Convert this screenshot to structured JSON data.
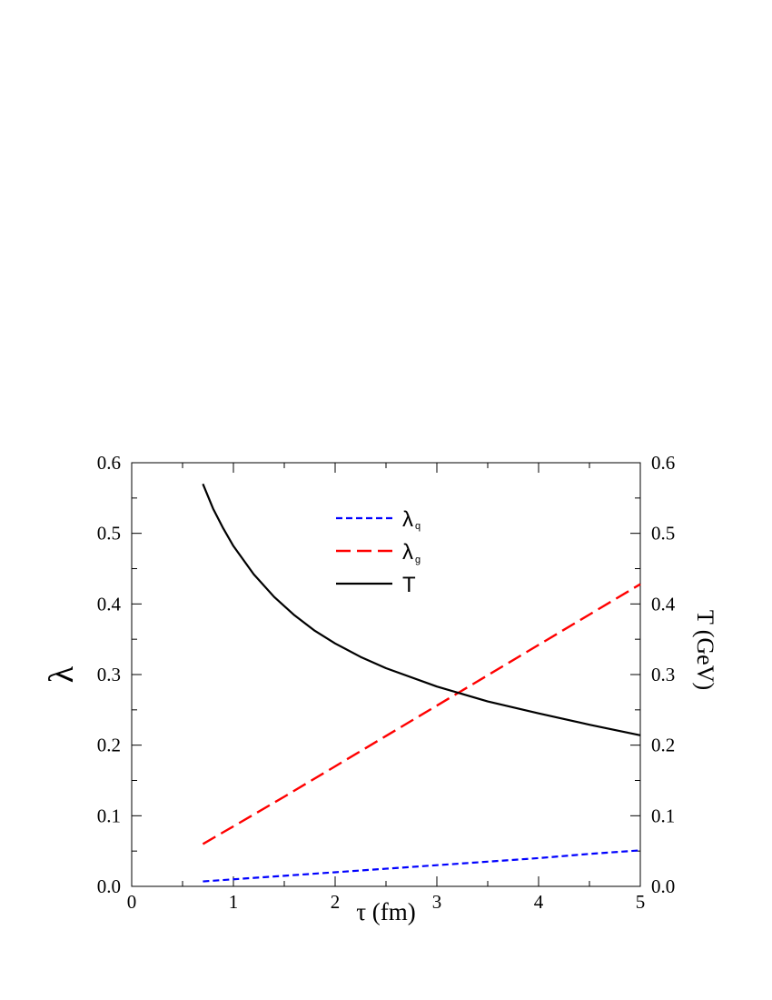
{
  "chart_data": {
    "type": "line",
    "xlabel": "τ (fm)",
    "ylabel_left": "λ",
    "ylabel_right": "T (GeV)",
    "xlim": [
      0,
      5
    ],
    "ylim_left": [
      0.0,
      0.6
    ],
    "ylim_right": [
      0.0,
      0.6
    ],
    "xticks": [
      "0",
      "1",
      "2",
      "3",
      "4",
      "5"
    ],
    "yticks_left": [
      "0.0",
      "0.1",
      "0.2",
      "0.3",
      "0.4",
      "0.5",
      "0.6"
    ],
    "yticks_right": [
      "0.0",
      "0.1",
      "0.2",
      "0.3",
      "0.4",
      "0.5",
      "0.6"
    ],
    "grid": false,
    "legend_position": "top-center",
    "series": [
      {
        "name": "λ",
        "subscript": "q",
        "style": "short-dash",
        "color": "#0000ff",
        "x": [
          0.7,
          1,
          1.5,
          2,
          2.5,
          3,
          3.5,
          4,
          4.5,
          5
        ],
        "y": [
          0.007,
          0.01,
          0.015,
          0.02,
          0.025,
          0.03,
          0.035,
          0.04,
          0.046,
          0.051
        ]
      },
      {
        "name": "λ",
        "subscript": "g",
        "style": "long-dash",
        "color": "#ff0000",
        "x": [
          0.7,
          1,
          1.5,
          2,
          2.5,
          3,
          3.5,
          4,
          4.5,
          5
        ],
        "y": [
          0.06,
          0.085,
          0.127,
          0.17,
          0.213,
          0.256,
          0.299,
          0.342,
          0.385,
          0.428
        ]
      },
      {
        "name": "T",
        "subscript": "",
        "style": "solid",
        "color": "#000000",
        "x": [
          0.7,
          0.8,
          0.9,
          1.0,
          1.2,
          1.4,
          1.6,
          1.8,
          2.0,
          2.25,
          2.5,
          3.0,
          3.5,
          4.0,
          4.5,
          5.0
        ],
        "y": [
          0.57,
          0.535,
          0.507,
          0.482,
          0.442,
          0.41,
          0.384,
          0.362,
          0.344,
          0.325,
          0.309,
          0.283,
          0.262,
          0.245,
          0.229,
          0.214
        ]
      }
    ]
  }
}
